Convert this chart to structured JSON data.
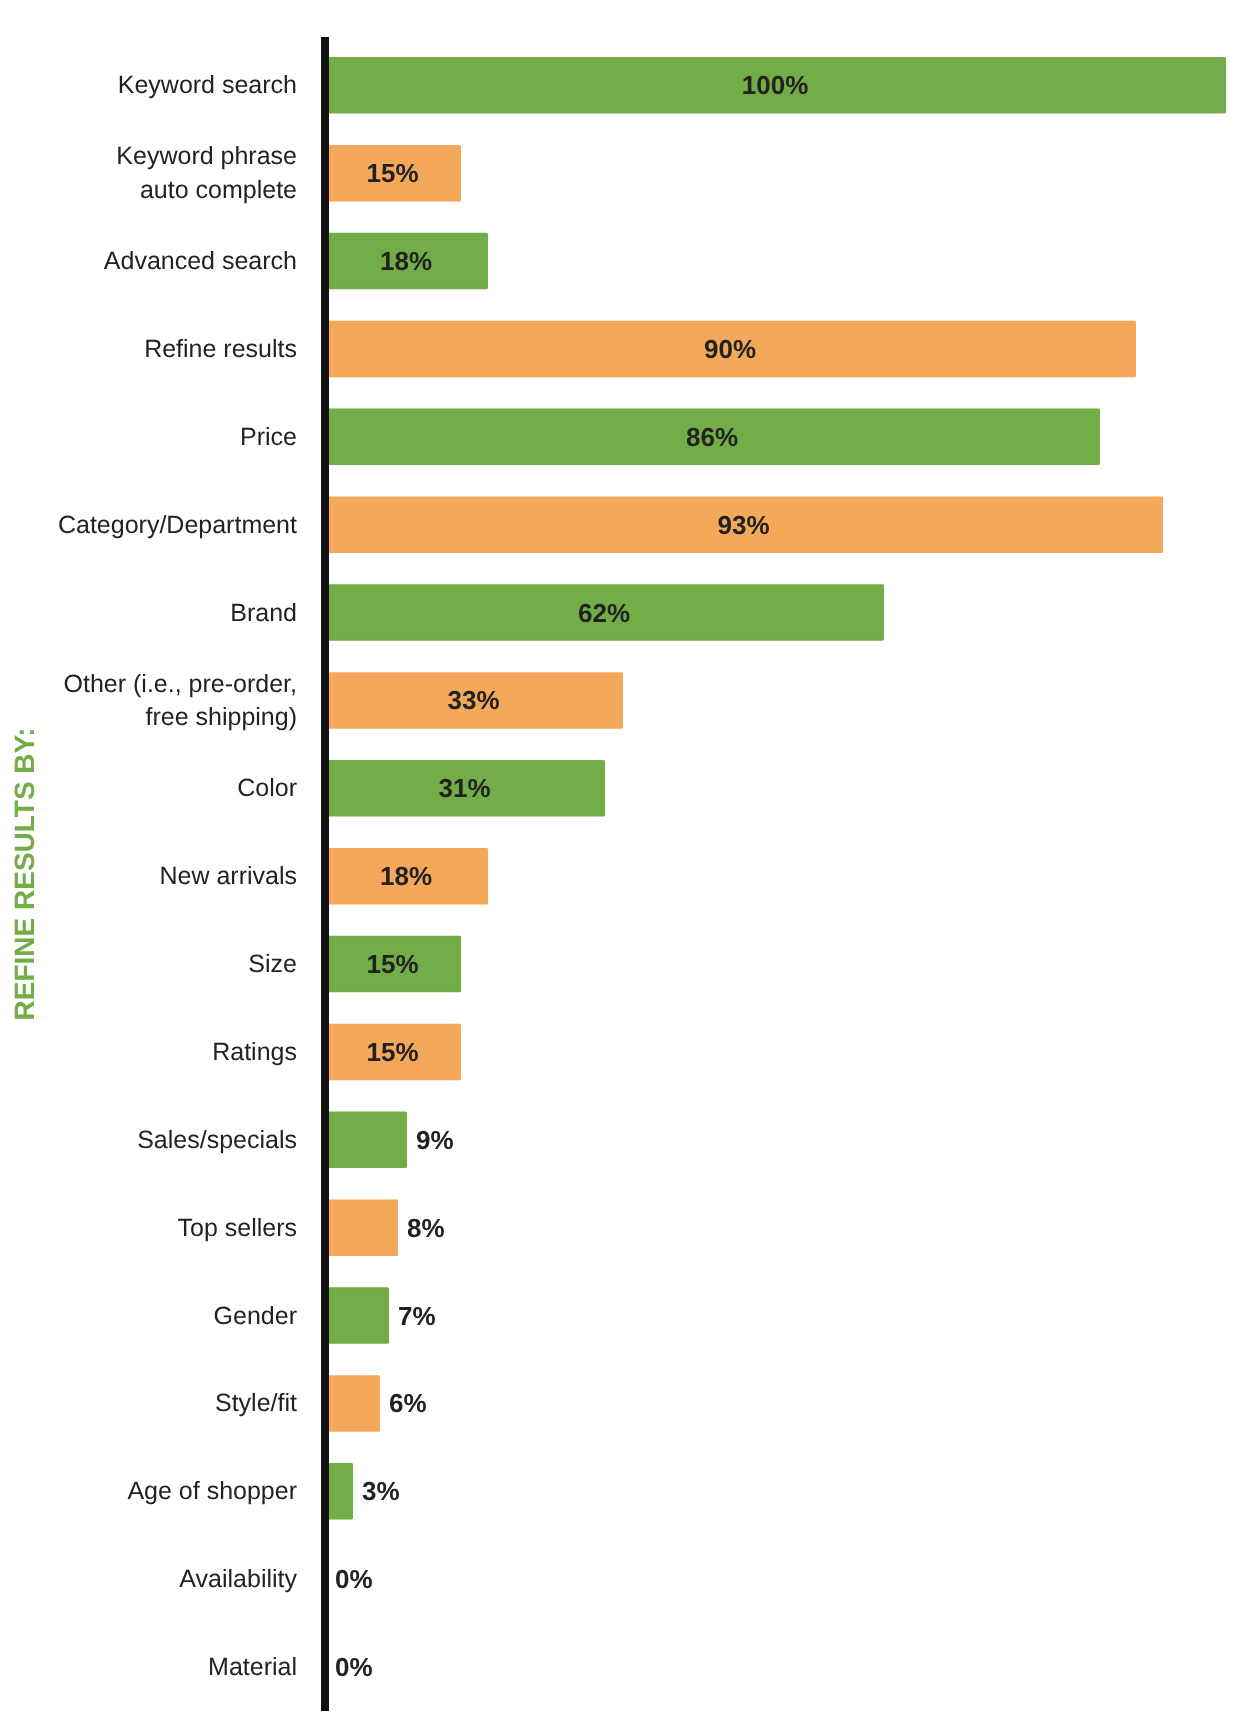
{
  "chart_data": {
    "type": "bar",
    "orientation": "horizontal",
    "grid": false,
    "categories": [
      "Keyword search",
      "Keyword phrase auto complete",
      "Advanced search",
      "Refine results",
      "Price",
      "Category/Department",
      "Brand",
      "Other (i.e., pre-order, free shipping)",
      "Color",
      "New arrivals",
      "Size",
      "Ratings",
      "Sales/specials",
      "Top sellers",
      "Gender",
      "Style/fit",
      "Age of shopper",
      "Availability",
      "Material"
    ],
    "values": [
      100,
      15,
      18,
      90,
      86,
      93,
      62,
      33,
      31,
      18,
      15,
      15,
      9,
      8,
      7,
      6,
      3,
      0,
      0
    ],
    "colors": [
      "#72ad47",
      "#f3a85a",
      "#72ad47",
      "#f3a85a",
      "#72ad47",
      "#f3a85a",
      "#72ad47",
      "#f3a85a",
      "#72ad47",
      "#f3a85a",
      "#72ad47",
      "#f3a85a",
      "#72ad47",
      "#f3a85a",
      "#72ad47",
      "#f3a85a",
      "#72ad47",
      "#f3a85a",
      "#72ad47"
    ],
    "value_labels": [
      "100%",
      "15%",
      "18%",
      "90%",
      "86%",
      "93%",
      "62%",
      "33%",
      "31%",
      "18%",
      "15%",
      "15%",
      "9%",
      "8%",
      "7%",
      "6%",
      "3%",
      "0%",
      "0%"
    ],
    "annotations": [
      "REFINE RESULTS BY:"
    ]
  }
}
